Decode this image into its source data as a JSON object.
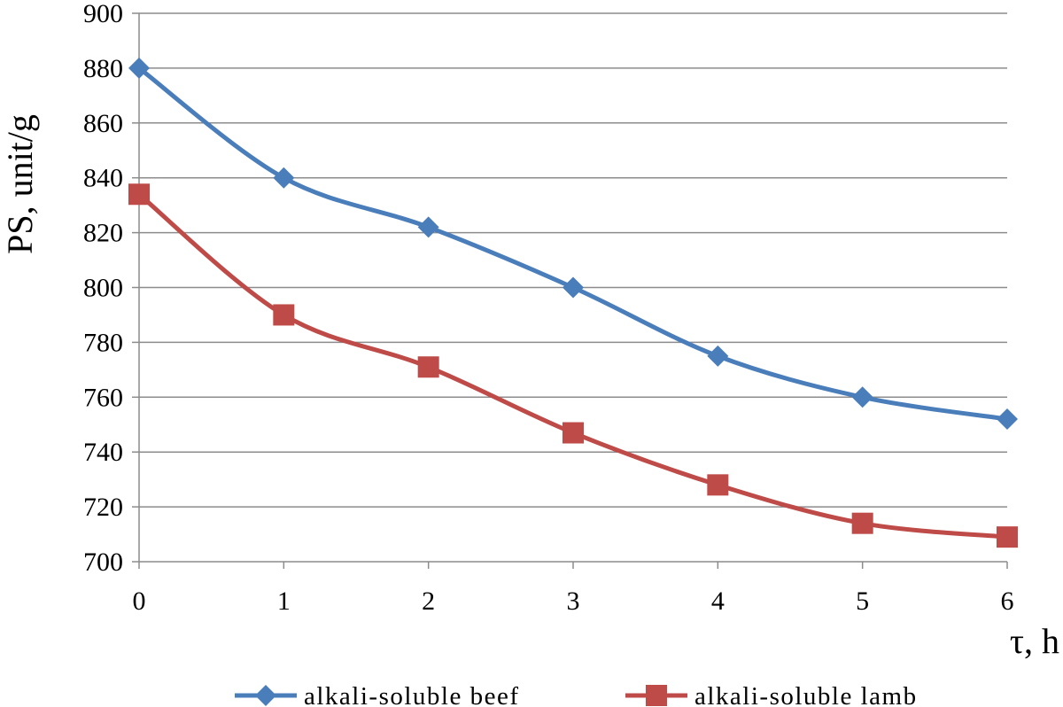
{
  "chart_data": {
    "type": "line",
    "title": "",
    "xlabel": "τ, h",
    "ylabel": "PS, unit/g",
    "x": [
      0,
      1,
      2,
      3,
      4,
      5,
      6
    ],
    "xlim": [
      0,
      6
    ],
    "ylim": [
      700,
      900
    ],
    "yticks": [
      700,
      720,
      740,
      760,
      780,
      800,
      820,
      840,
      860,
      880,
      900
    ],
    "grid": "horizontal",
    "legend_position": "bottom",
    "series": [
      {
        "name": "alkali-soluble beef",
        "values": [
          880,
          840,
          822,
          800,
          775,
          760,
          752
        ],
        "color": "#4a7ebb",
        "marker": "diamond"
      },
      {
        "name": "alkali-soluble lamb",
        "values": [
          834,
          790,
          771,
          747,
          728,
          714,
          709
        ],
        "color": "#be4b48",
        "marker": "square"
      }
    ]
  }
}
